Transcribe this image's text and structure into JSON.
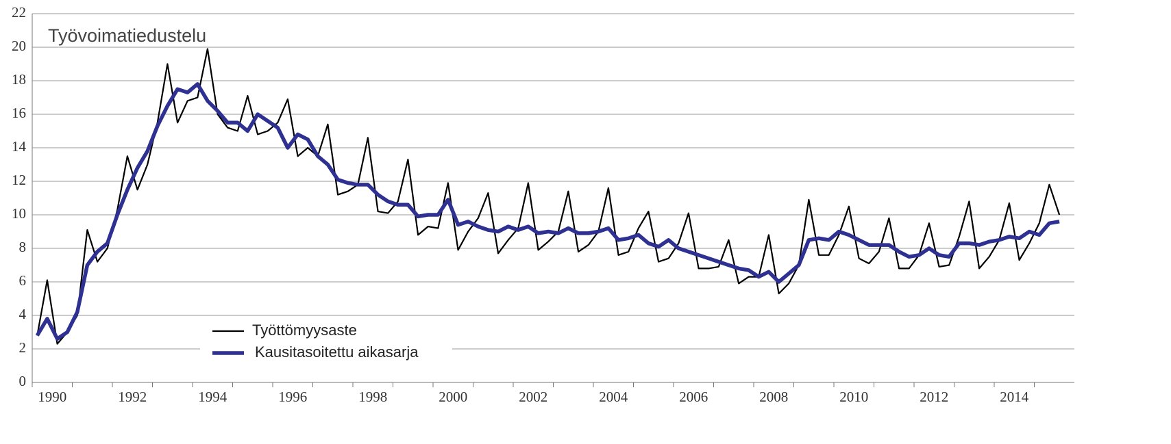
{
  "chart_data": {
    "type": "line",
    "title": "Työvoimatiedustelu",
    "x": [
      1990.125,
      1990.375,
      1990.625,
      1990.875,
      1991.125,
      1991.375,
      1991.625,
      1991.875,
      1992.125,
      1992.375,
      1992.625,
      1992.875,
      1993.125,
      1993.375,
      1993.625,
      1993.875,
      1994.125,
      1994.375,
      1994.625,
      1994.875,
      1995.125,
      1995.375,
      1995.625,
      1995.875,
      1996.125,
      1996.375,
      1996.625,
      1996.875,
      1997.125,
      1997.375,
      1997.625,
      1997.875,
      1998.125,
      1998.375,
      1998.625,
      1998.875,
      1999.125,
      1999.375,
      1999.625,
      1999.875,
      2000.125,
      2000.375,
      2000.625,
      2000.875,
      2001.125,
      2001.375,
      2001.625,
      2001.875,
      2002.125,
      2002.375,
      2002.625,
      2002.875,
      2003.125,
      2003.375,
      2003.625,
      2003.875,
      2004.125,
      2004.375,
      2004.625,
      2004.875,
      2005.125,
      2005.375,
      2005.625,
      2005.875,
      2006.125,
      2006.375,
      2006.625,
      2006.875,
      2007.125,
      2007.375,
      2007.625,
      2007.875,
      2008.125,
      2008.375,
      2008.625,
      2008.875,
      2009.125,
      2009.375,
      2009.625,
      2009.875,
      2010.125,
      2010.375,
      2010.625,
      2010.875,
      2011.125,
      2011.375,
      2011.625,
      2011.875,
      2012.125,
      2012.375,
      2012.625,
      2012.875,
      2013.125,
      2013.375,
      2013.625,
      2013.875,
      2014.125,
      2014.375,
      2014.625,
      2014.875,
      2015.125,
      2015.375,
      2015.625
    ],
    "series": [
      {
        "name": "Työttömyysaste",
        "color": "#000000",
        "values": [
          2.8,
          6.1,
          2.3,
          3.0,
          4.0,
          9.1,
          7.2,
          8.0,
          10.3,
          13.5,
          11.5,
          13.0,
          15.5,
          19.0,
          15.5,
          16.8,
          17.0,
          19.9,
          16.0,
          15.2,
          15.0,
          17.1,
          14.8,
          15.0,
          15.5,
          16.9,
          13.5,
          14.0,
          13.5,
          15.4,
          11.2,
          11.4,
          11.8,
          14.6,
          10.2,
          10.1,
          10.8,
          13.3,
          8.8,
          9.3,
          9.2,
          11.9,
          7.9,
          9.0,
          9.8,
          11.3,
          7.7,
          8.5,
          9.2,
          11.9,
          7.9,
          8.4,
          9.0,
          11.4,
          7.8,
          8.2,
          9.0,
          11.6,
          7.6,
          7.8,
          9.2,
          10.2,
          7.2,
          7.4,
          8.3,
          10.1,
          6.8,
          6.8,
          6.9,
          8.5,
          5.9,
          6.3,
          6.3,
          8.8,
          5.3,
          5.9,
          7.0,
          10.9,
          7.6,
          7.6,
          8.8,
          10.5,
          7.4,
          7.1,
          7.8,
          9.8,
          6.8,
          6.8,
          7.6,
          9.5,
          6.9,
          7.0,
          8.7,
          10.8,
          6.8,
          7.5,
          8.5,
          10.7,
          7.3,
          8.3,
          9.5,
          11.8,
          10.0
        ]
      },
      {
        "name": "Kausitasoitettu aikasarja",
        "color": "#2e3192",
        "values": [
          2.8,
          3.8,
          2.6,
          3.0,
          4.2,
          7.0,
          7.8,
          8.3,
          10.0,
          11.5,
          12.8,
          13.8,
          15.3,
          16.5,
          17.5,
          17.3,
          17.8,
          16.8,
          16.2,
          15.5,
          15.5,
          15.0,
          16.0,
          15.6,
          15.2,
          14.0,
          14.8,
          14.5,
          13.5,
          13.0,
          12.1,
          11.9,
          11.8,
          11.8,
          11.2,
          10.8,
          10.6,
          10.6,
          9.9,
          10.0,
          10.0,
          10.9,
          9.4,
          9.6,
          9.3,
          9.1,
          9.0,
          9.3,
          9.1,
          9.3,
          8.9,
          9.0,
          8.9,
          9.2,
          8.9,
          8.9,
          9.0,
          9.2,
          8.5,
          8.6,
          8.8,
          8.3,
          8.1,
          8.5,
          8.0,
          7.8,
          7.6,
          7.4,
          7.2,
          7.0,
          6.8,
          6.7,
          6.3,
          6.6,
          6.0,
          6.5,
          7.0,
          8.5,
          8.6,
          8.5,
          9.0,
          8.8,
          8.5,
          8.2,
          8.2,
          8.2,
          7.8,
          7.5,
          7.6,
          8.0,
          7.6,
          7.5,
          8.3,
          8.3,
          8.2,
          8.4,
          8.5,
          8.7,
          8.6,
          9.0,
          8.8,
          9.5,
          9.6
        ]
      }
    ],
    "xlim": [
      1990,
      2016
    ],
    "xticks": [
      1990,
      1992,
      1994,
      1996,
      1998,
      2000,
      2002,
      2004,
      2006,
      2008,
      2010,
      2012,
      2014
    ],
    "ylim": [
      0,
      22
    ],
    "yticks": [
      0,
      2,
      4,
      6,
      8,
      10,
      12,
      14,
      16,
      18,
      20,
      22
    ],
    "grid": true,
    "legend": "lower left"
  }
}
